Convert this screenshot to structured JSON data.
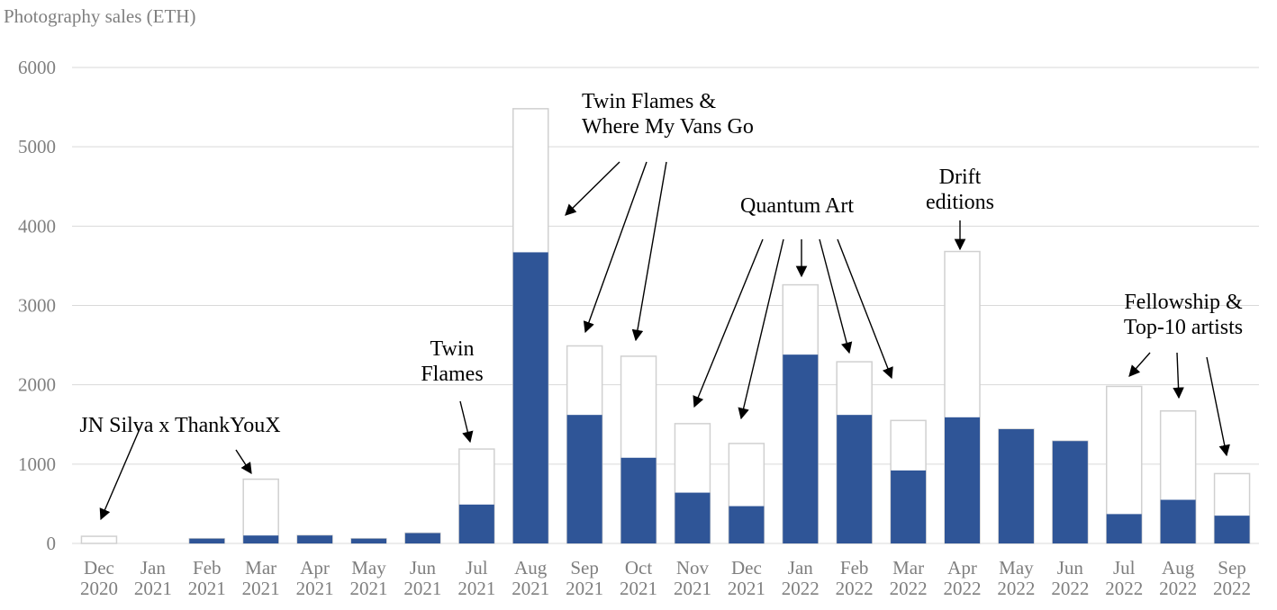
{
  "chart_data": {
    "type": "bar",
    "ylabel": "Photography sales (ETH)",
    "ylim": [
      0,
      6000
    ],
    "yticks": [
      0,
      1000,
      2000,
      3000,
      4000,
      5000,
      6000
    ],
    "grid": true,
    "categories": [
      [
        "Dec",
        "2020"
      ],
      [
        "Jan",
        "2021"
      ],
      [
        "Feb",
        "2021"
      ],
      [
        "Mar",
        "2021"
      ],
      [
        "Apr",
        "2021"
      ],
      [
        "May",
        "2021"
      ],
      [
        "Jun",
        "2021"
      ],
      [
        "Jul",
        "2021"
      ],
      [
        "Aug",
        "2021"
      ],
      [
        "Sep",
        "2021"
      ],
      [
        "Oct",
        "2021"
      ],
      [
        "Nov",
        "2021"
      ],
      [
        "Dec",
        "2021"
      ],
      [
        "Jan",
        "2022"
      ],
      [
        "Feb",
        "2022"
      ],
      [
        "Mar",
        "2022"
      ],
      [
        "Apr",
        "2022"
      ],
      [
        "May",
        "2022"
      ],
      [
        "Jun",
        "2022"
      ],
      [
        "Jul",
        "2022"
      ],
      [
        "Aug",
        "2022"
      ],
      [
        "Sep",
        "2022"
      ]
    ],
    "series": [
      {
        "values": [
          0,
          0,
          60,
          100,
          100,
          60,
          130,
          490,
          3670,
          1620,
          1080,
          640,
          470,
          2380,
          1620,
          920,
          1590,
          1440,
          1290,
          370,
          550,
          350
        ]
      },
      {
        "values": [
          90,
          0,
          60,
          810,
          100,
          60,
          130,
          1190,
          5480,
          2490,
          2360,
          1510,
          1260,
          3260,
          2290,
          1550,
          3680,
          1440,
          1290,
          1980,
          1670,
          880
        ]
      }
    ],
    "colors": {
      "fill": "#2f5597",
      "total_outline": "#d0d0d0",
      "grid": "#d9d9d9",
      "text": "#7f7f7f"
    },
    "annotations": [
      {
        "lines": [
          "JN Silva x ThankYouX"
        ],
        "targets": [
          0,
          3
        ]
      },
      {
        "lines": [
          "Twin",
          "Flames"
        ],
        "targets": [
          7
        ]
      },
      {
        "lines": [
          "Twin Flames &",
          "Where My Vans Go"
        ],
        "targets": [
          8,
          9,
          10
        ]
      },
      {
        "lines": [
          "Quantum Art"
        ],
        "targets": [
          11,
          12,
          13,
          14,
          15
        ]
      },
      {
        "lines": [
          "Drift",
          "editions"
        ],
        "targets": [
          16
        ]
      },
      {
        "lines": [
          "Fellowship &",
          "Top-10 artists"
        ],
        "targets": [
          19,
          20,
          21
        ]
      }
    ]
  }
}
